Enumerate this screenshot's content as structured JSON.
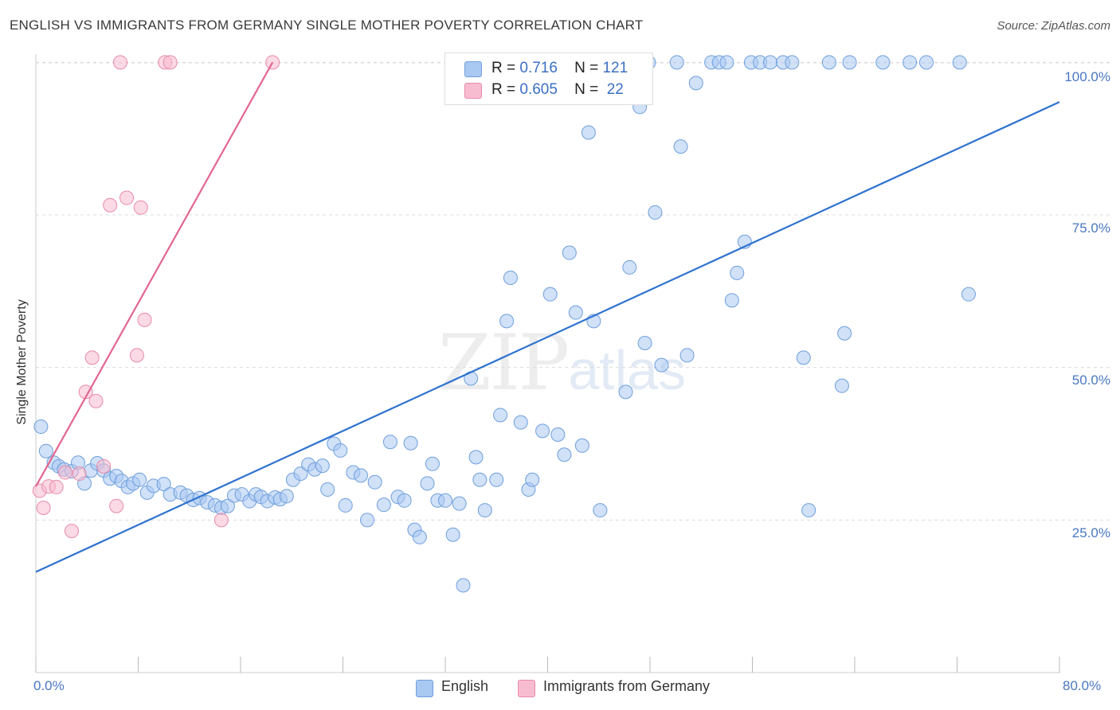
{
  "title": "ENGLISH VS IMMIGRANTS FROM GERMANY SINGLE MOTHER POVERTY CORRELATION CHART",
  "source": "Source: ZipAtlas.com",
  "watermark": {
    "a": "ZIP",
    "b": "atlas"
  },
  "legend_top": [
    {
      "r_label": "R =",
      "r_value": "0.716",
      "n_label": "N =",
      "n_value": "121",
      "color": "#a9c8f2",
      "border": "#6f9fdc"
    },
    {
      "r_label": "R =",
      "r_value": "0.605",
      "n_label": "N =",
      "n_value": "22",
      "color": "#f8bcd0",
      "border": "#e98aa8"
    }
  ],
  "legend_bottom": [
    {
      "label": "English",
      "color": "#a9c8f2",
      "border": "#6f9fdc"
    },
    {
      "label": "Immigrants from Germany",
      "color": "#f8bcd0",
      "border": "#e98aa8"
    }
  ],
  "chart_data": {
    "type": "scatter",
    "title": "ENGLISH VS IMMIGRANTS FROM GERMANY SINGLE MOTHER POVERTY CORRELATION CHART",
    "xlabel": "",
    "ylabel": "Single Mother Poverty",
    "xlim": [
      0,
      80
    ],
    "ylim": [
      0,
      101
    ],
    "x_tick_labels": [
      "0.0%",
      "80.0%"
    ],
    "y_ticks": [
      25,
      50,
      75,
      100
    ],
    "y_tick_labels": [
      "25.0%",
      "50.0%",
      "75.0%",
      "100.0%"
    ],
    "grid": true,
    "series": [
      {
        "name": "English",
        "color": "#a9c8f2",
        "stroke": "#6f9fdc",
        "trendline": {
          "x": [
            0,
            80
          ],
          "y": [
            16.5,
            93.5
          ],
          "color": "#2f72cf"
        },
        "points": [
          [
            0.4,
            40.3
          ],
          [
            0.8,
            36.3
          ],
          [
            1.4,
            34.4
          ],
          [
            1.8,
            33.8
          ],
          [
            2.2,
            33.3
          ],
          [
            2.8,
            33.0
          ],
          [
            3.3,
            34.4
          ],
          [
            3.8,
            31.0
          ],
          [
            4.3,
            33.1
          ],
          [
            4.8,
            34.3
          ],
          [
            5.3,
            33.1
          ],
          [
            5.8,
            31.8
          ],
          [
            6.3,
            32.2
          ],
          [
            6.7,
            31.4
          ],
          [
            7.2,
            30.4
          ],
          [
            7.6,
            31.0
          ],
          [
            8.1,
            31.6
          ],
          [
            8.7,
            29.5
          ],
          [
            9.2,
            30.6
          ],
          [
            10.0,
            30.9
          ],
          [
            10.5,
            29.2
          ],
          [
            11.3,
            29.5
          ],
          [
            11.8,
            29.0
          ],
          [
            12.3,
            28.3
          ],
          [
            12.8,
            28.6
          ],
          [
            13.4,
            27.9
          ],
          [
            14.0,
            27.4
          ],
          [
            14.5,
            27.0
          ],
          [
            15.0,
            27.3
          ],
          [
            15.5,
            29.0
          ],
          [
            16.1,
            29.2
          ],
          [
            16.7,
            28.1
          ],
          [
            17.2,
            29.2
          ],
          [
            17.6,
            28.8
          ],
          [
            18.1,
            28.1
          ],
          [
            18.7,
            28.7
          ],
          [
            19.1,
            28.4
          ],
          [
            19.6,
            28.9
          ],
          [
            20.1,
            31.6
          ],
          [
            20.7,
            32.6
          ],
          [
            21.3,
            34.1
          ],
          [
            21.8,
            33.3
          ],
          [
            22.4,
            33.9
          ],
          [
            22.8,
            30.0
          ],
          [
            23.3,
            37.5
          ],
          [
            23.8,
            36.4
          ],
          [
            24.2,
            27.4
          ],
          [
            24.8,
            32.8
          ],
          [
            25.4,
            32.3
          ],
          [
            25.9,
            25.0
          ],
          [
            26.5,
            31.2
          ],
          [
            27.2,
            27.5
          ],
          [
            27.7,
            37.8
          ],
          [
            28.3,
            28.8
          ],
          [
            28.8,
            28.2
          ],
          [
            29.3,
            37.6
          ],
          [
            29.6,
            23.4
          ],
          [
            30.0,
            22.2
          ],
          [
            30.6,
            31.0
          ],
          [
            31.0,
            34.2
          ],
          [
            31.4,
            28.2
          ],
          [
            32.0,
            28.2
          ],
          [
            32.6,
            22.6
          ],
          [
            33.1,
            27.7
          ],
          [
            33.4,
            14.3
          ],
          [
            34.0,
            48.2
          ],
          [
            34.4,
            35.3
          ],
          [
            34.7,
            31.6
          ],
          [
            35.1,
            26.6
          ],
          [
            36.0,
            31.6
          ],
          [
            36.3,
            42.2
          ],
          [
            36.8,
            57.6
          ],
          [
            37.1,
            64.7
          ],
          [
            37.9,
            41.0
          ],
          [
            38.5,
            30.0
          ],
          [
            38.8,
            31.6
          ],
          [
            39.6,
            39.6
          ],
          [
            40.2,
            62.0
          ],
          [
            40.8,
            39.0
          ],
          [
            41.3,
            35.7
          ],
          [
            41.7,
            68.8
          ],
          [
            42.2,
            59.0
          ],
          [
            42.7,
            37.2
          ],
          [
            43.2,
            88.5
          ],
          [
            43.6,
            57.6
          ],
          [
            44.1,
            26.6
          ],
          [
            44.6,
            100.0
          ],
          [
            45.1,
            100.0
          ],
          [
            46.1,
            46.0
          ],
          [
            46.4,
            66.4
          ],
          [
            47.2,
            92.7
          ],
          [
            47.6,
            54.0
          ],
          [
            47.9,
            100.0
          ],
          [
            48.4,
            75.4
          ],
          [
            48.9,
            50.4
          ],
          [
            50.1,
            100.0
          ],
          [
            50.4,
            86.2
          ],
          [
            50.9,
            52.0
          ],
          [
            51.6,
            96.6
          ],
          [
            52.8,
            100.0
          ],
          [
            53.4,
            100.0
          ],
          [
            54.0,
            100.0
          ],
          [
            54.4,
            61.0
          ],
          [
            54.8,
            65.5
          ],
          [
            55.4,
            70.6
          ],
          [
            55.9,
            100.0
          ],
          [
            56.6,
            100.0
          ],
          [
            57.4,
            100.0
          ],
          [
            58.4,
            100.0
          ],
          [
            59.1,
            100.0
          ],
          [
            60.0,
            51.6
          ],
          [
            60.4,
            26.6
          ],
          [
            62.0,
            100.0
          ],
          [
            63.0,
            47.0
          ],
          [
            63.2,
            55.6
          ],
          [
            63.6,
            100.0
          ],
          [
            66.2,
            100.0
          ],
          [
            68.3,
            100.0
          ],
          [
            69.6,
            100.0
          ],
          [
            72.2,
            100.0
          ],
          [
            72.9,
            62.0
          ]
        ]
      },
      {
        "name": "Immigrants from Germany",
        "color": "#f8bcd0",
        "stroke": "#e98aa8",
        "trendline": {
          "x": [
            0,
            18.5
          ],
          "y": [
            30.5,
            100.0
          ],
          "color": "#e2668e"
        },
        "points": [
          [
            0.3,
            29.8
          ],
          [
            0.6,
            27.0
          ],
          [
            1.0,
            30.5
          ],
          [
            1.6,
            30.4
          ],
          [
            2.3,
            32.8
          ],
          [
            2.8,
            23.2
          ],
          [
            3.4,
            32.6
          ],
          [
            3.9,
            46.0
          ],
          [
            4.4,
            51.6
          ],
          [
            4.7,
            44.5
          ],
          [
            5.3,
            33.8
          ],
          [
            5.8,
            76.6
          ],
          [
            6.3,
            27.3
          ],
          [
            6.6,
            100.0
          ],
          [
            7.1,
            77.8
          ],
          [
            7.9,
            52.0
          ],
          [
            8.2,
            76.2
          ],
          [
            8.5,
            57.8
          ],
          [
            10.1,
            100.0
          ],
          [
            10.5,
            100.0
          ],
          [
            14.5,
            25.0
          ],
          [
            18.5,
            100.0
          ]
        ]
      }
    ]
  }
}
